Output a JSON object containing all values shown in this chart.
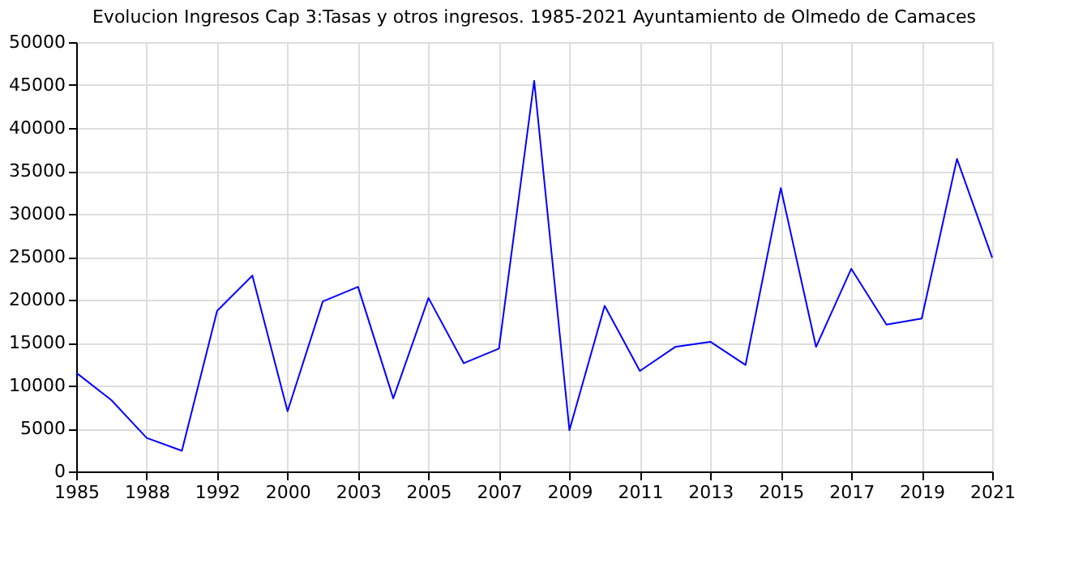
{
  "chart_data": {
    "type": "line",
    "title": "Evolucion Ingresos Cap 3:Tasas y otros ingresos. 1985-2021 Ayuntamiento de Olmedo de Camaces",
    "categories": [
      "1985",
      null,
      "1988",
      null,
      "1992",
      null,
      "2000",
      null,
      "2003",
      null,
      "2005",
      null,
      "2007",
      null,
      "2009",
      null,
      "2011",
      null,
      "2013",
      null,
      "2015",
      null,
      "2017",
      null,
      "2019",
      null,
      "2021"
    ],
    "series": [
      {
        "color": "#0000ff",
        "values": [
          11500,
          8300,
          3900,
          2400,
          18700,
          22800,
          7000,
          19800,
          21500,
          8500,
          20200,
          12600,
          14300,
          45500,
          4800,
          19300,
          11700,
          14500,
          15100,
          12400,
          33000,
          14500,
          23600,
          17100,
          17800,
          36400,
          24900
        ]
      }
    ],
    "ylim": [
      0,
      50000
    ],
    "yticks": [
      0,
      5000,
      10000,
      15000,
      20000,
      25000,
      30000,
      35000,
      40000,
      45000,
      50000
    ],
    "grid": true,
    "legend": false,
    "marker": "none",
    "line_style": "solid"
  }
}
